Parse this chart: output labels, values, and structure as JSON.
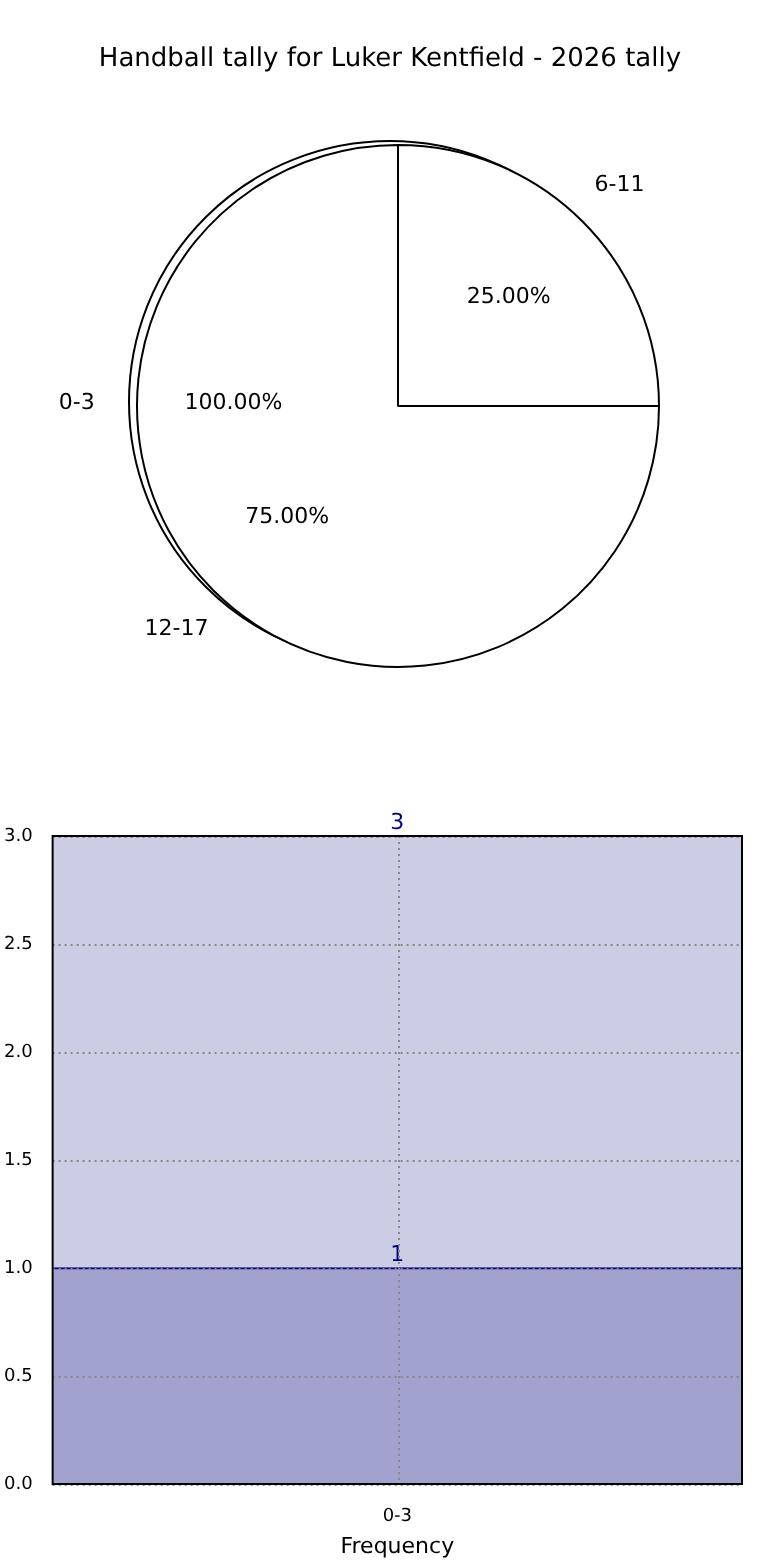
{
  "chart_data": [
    {
      "type": "pie",
      "title": "Handball tally for Luker Kentfield - 2026 tally",
      "categories": [
        "0-3"
      ],
      "values": [
        100
      ],
      "colors": [
        "#ffffff"
      ],
      "value_labels": [
        "100.00%"
      ]
    },
    {
      "type": "pie",
      "categories": [
        "6-11",
        "12-17"
      ],
      "values": [
        25,
        75
      ],
      "colors": [
        "#ffffff",
        "#ffffff"
      ],
      "value_labels": [
        "25.00%",
        "75.00%"
      ]
    },
    {
      "type": "bar",
      "xlabel": "Frequency",
      "categories": [
        "0-3"
      ],
      "ylim": [
        0,
        3
      ],
      "yticks": [
        {
          "value": 0,
          "label": "0.0"
        },
        {
          "value": 0.5,
          "label": "0.5"
        },
        {
          "value": 1,
          "label": "1.0"
        },
        {
          "value": 1.5,
          "label": "1.5"
        },
        {
          "value": 2,
          "label": "2.0"
        },
        {
          "value": 2.5,
          "label": "2.5"
        },
        {
          "value": 3,
          "label": "3.0"
        }
      ],
      "grid": true,
      "stacked": true,
      "totals": [
        "3"
      ],
      "series": [
        {
          "color": "#a2a2cf",
          "values": [
            1
          ],
          "value_labels": [
            "1"
          ]
        },
        {
          "color": "#cccce4",
          "values": [
            2
          ]
        }
      ]
    }
  ]
}
